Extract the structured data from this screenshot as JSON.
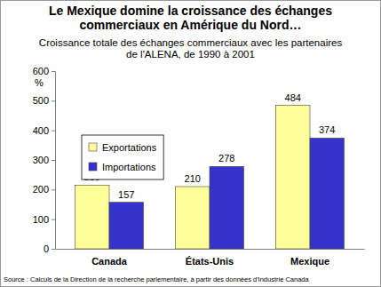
{
  "chart_data": {
    "type": "bar",
    "title": "Le Mexique domine la croissance des échanges commerciaux en Amérique du Nord…",
    "subtitle": "Croissance totale des échanges commerciaux avec les partenaires de l'ALENA, de 1990 à 2001",
    "y_label": "%",
    "source": "Source : Calculs de la Direction de la recherche parlementaire, à partir des données d'Industrie Canada",
    "categories": [
      "Canada",
      "États-Unis",
      "Mexique"
    ],
    "series": [
      {
        "name": "Exportations",
        "color": "#ffff99",
        "values": [
          215,
          210,
          484
        ]
      },
      {
        "name": "Importations",
        "color": "#3333cc",
        "values": [
          157,
          278,
          374
        ]
      }
    ],
    "ylim": [
      0,
      600
    ],
    "yticks": [
      0,
      100,
      200,
      300,
      400,
      500,
      600
    ],
    "grid": false,
    "legend": "left",
    "data_labels": true
  }
}
